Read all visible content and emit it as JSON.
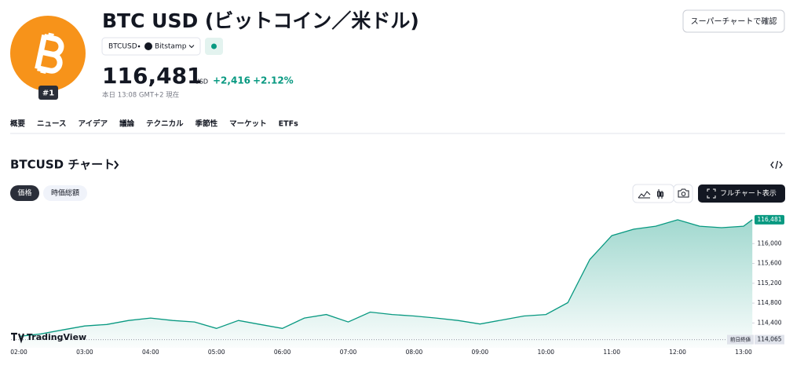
{
  "header": {
    "title": "BTC USD (ビットコイン／米ドル)",
    "symbol": "BTCUSD",
    "exchange": "Bitstamp",
    "rank": "#1",
    "price": "116,481",
    "currency": "USD",
    "change": "+2,416",
    "change_percent": "+2.12%",
    "time": "本日 13:08 GMT+2 現在",
    "supercharts_button": "スーパーチャートで確認"
  },
  "tabs": [
    "概要",
    "ニュース",
    "アイデア",
    "議論",
    "テクニカル",
    "季節性",
    "マーケット",
    "ETFs"
  ],
  "chart_section": {
    "heading": "BTCUSD チャート",
    "chips": [
      "価格",
      "時価総額"
    ],
    "full_chart_button": "フルチャート表示",
    "watermark": "TradingView"
  },
  "chart_data": {
    "type": "line",
    "color": "#089981",
    "x": [
      "02:00",
      "02:20",
      "02:40",
      "03:00",
      "03:20",
      "03:40",
      "04:00",
      "04:20",
      "04:40",
      "05:00",
      "05:20",
      "05:40",
      "06:00",
      "06:20",
      "06:40",
      "07:00",
      "07:20",
      "07:40",
      "08:00",
      "08:20",
      "08:40",
      "09:00",
      "09:20",
      "09:40",
      "10:00",
      "10:20",
      "10:40",
      "11:00",
      "11:20",
      "11:40",
      "12:00",
      "12:20",
      "12:40",
      "13:00",
      "13:08"
    ],
    "values": [
      114130,
      114180,
      114260,
      114340,
      114370,
      114450,
      114500,
      114450,
      114420,
      114290,
      114450,
      114370,
      114290,
      114500,
      114570,
      114420,
      114620,
      114570,
      114540,
      114500,
      114450,
      114380,
      114460,
      114540,
      114570,
      114810,
      115680,
      116160,
      116290,
      116350,
      116480,
      116350,
      116320,
      116350,
      116481
    ],
    "xlim": [
      "02:00",
      "13:00"
    ],
    "xticks": [
      "02:00",
      "03:00",
      "04:00",
      "05:00",
      "06:00",
      "07:00",
      "08:00",
      "09:00",
      "10:00",
      "11:00",
      "12:00",
      "13:00"
    ],
    "ylim": [
      113900,
      116700
    ],
    "yticks": [
      {
        "value": 114400,
        "label": "114,400"
      },
      {
        "value": 114800,
        "label": "114,800"
      },
      {
        "value": 115200,
        "label": "115,200"
      },
      {
        "value": 115600,
        "label": "115,600"
      },
      {
        "value": 116000,
        "label": "116,000"
      }
    ],
    "last_value": {
      "value": 116481,
      "label": "116,481"
    },
    "prev_close": {
      "value": 114065,
      "label": "114,065"
    },
    "prev_close_text": "前日終値"
  }
}
